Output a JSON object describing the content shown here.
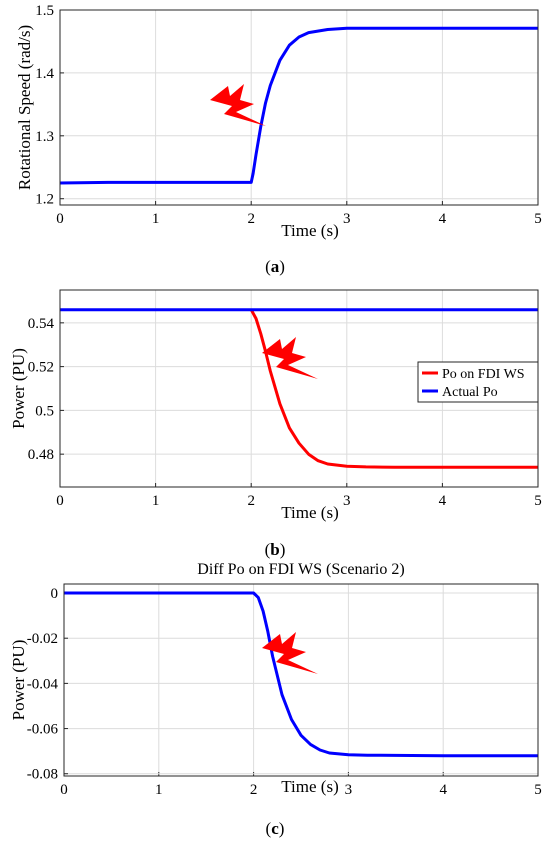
{
  "chart_data": [
    {
      "type": "line",
      "panel": "a",
      "caption": "(a)",
      "title": "",
      "xlabel": "Time (s)",
      "ylabel": "Rotational Speed (rad/s)",
      "xlim": [
        0,
        5
      ],
      "ylim": [
        1.19,
        1.5
      ],
      "xticks": [
        "0",
        "1",
        "2",
        "3",
        "4",
        "5"
      ],
      "yticks": [
        "1.2",
        "1.3",
        "1.4",
        "1.5"
      ],
      "grid": true,
      "legend": null,
      "series": [
        {
          "color": "#0000ff",
          "x": [
            0,
            0.5,
            1,
            1.5,
            1.9,
            2.0,
            2.02,
            2.05,
            2.1,
            2.15,
            2.2,
            2.3,
            2.4,
            2.5,
            2.6,
            2.8,
            3.0,
            3.5,
            4.0,
            5.0
          ],
          "y": [
            1.225,
            1.226,
            1.226,
            1.226,
            1.226,
            1.226,
            1.24,
            1.27,
            1.315,
            1.352,
            1.38,
            1.42,
            1.444,
            1.457,
            1.464,
            1.469,
            1.471,
            1.471,
            1.471,
            1.471
          ]
        }
      ]
    },
    {
      "type": "line",
      "panel": "b",
      "caption": "(b)",
      "title": "",
      "xlabel": "Time (s)",
      "ylabel": "Power (PU)",
      "xlim": [
        0,
        5
      ],
      "ylim": [
        0.465,
        0.555
      ],
      "xticks": [
        "0",
        "1",
        "2",
        "3",
        "4",
        "5"
      ],
      "yticks": [
        "0.48",
        "0.5",
        "0.52",
        "0.54"
      ],
      "grid": true,
      "legend": "right",
      "series": [
        {
          "name": "Po on FDI WS",
          "color": "#ff0000",
          "x": [
            2.0,
            2.05,
            2.1,
            2.15,
            2.2,
            2.3,
            2.4,
            2.5,
            2.6,
            2.7,
            2.8,
            3.0,
            3.2,
            3.5,
            4.0,
            5.0
          ],
          "y": [
            0.546,
            0.542,
            0.535,
            0.527,
            0.518,
            0.503,
            0.492,
            0.485,
            0.48,
            0.477,
            0.4755,
            0.4745,
            0.4742,
            0.474,
            0.474,
            0.474
          ]
        },
        {
          "name": "Actual Po",
          "color": "#0000ff",
          "x": [
            0,
            2.0,
            5.0
          ],
          "y": [
            0.546,
            0.546,
            0.546
          ]
        }
      ]
    },
    {
      "type": "line",
      "panel": "c",
      "caption": "(c)",
      "title": "Diff Po on FDI WS (Scenario 2)",
      "xlabel": "Time (s)",
      "ylabel": "Power (PU)",
      "xlim": [
        0,
        5
      ],
      "ylim": [
        -0.081,
        0.004
      ],
      "xticks": [
        "0",
        "1",
        "2",
        "3",
        "4",
        "5"
      ],
      "yticks": [
        "0",
        "-0.02",
        "-0.04",
        "-0.06",
        "-0.08"
      ],
      "grid": true,
      "legend": null,
      "series": [
        {
          "color": "#0000ff",
          "x": [
            0,
            1.0,
            1.95,
            2.0,
            2.05,
            2.1,
            2.15,
            2.2,
            2.3,
            2.4,
            2.5,
            2.6,
            2.7,
            2.8,
            3.0,
            3.2,
            3.5,
            4.0,
            5.0
          ],
          "y": [
            0,
            0,
            0,
            0,
            -0.002,
            -0.008,
            -0.017,
            -0.028,
            -0.045,
            -0.056,
            -0.063,
            -0.067,
            -0.0695,
            -0.0708,
            -0.0716,
            -0.0718,
            -0.0719,
            -0.072,
            -0.072
          ]
        }
      ]
    }
  ]
}
